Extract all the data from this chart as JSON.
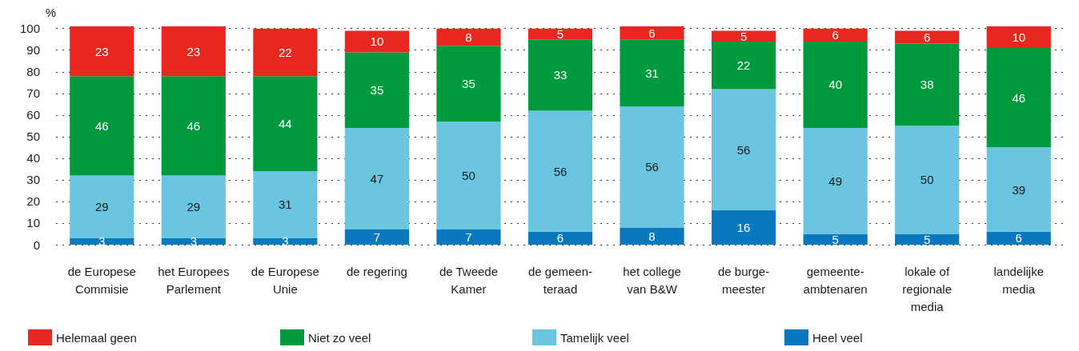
{
  "chart_data": {
    "type": "bar",
    "stacked": true,
    "ylabel": "%",
    "categories": [
      "de Europese\nCommisie",
      "het Europees\nParlement",
      "de Europese\nUnie",
      "de regering",
      "de Tweede\nKamer",
      "de gemeen-\nteraad",
      "het college\nvan B&W",
      "de burge-\nmeester",
      "gemeente-\nambtenaren",
      "lokale of\nregionale\nmedia",
      "landelijke\nmedia"
    ],
    "series": [
      {
        "name": "Heel veel",
        "color": "#0a78bd",
        "values": [
          3,
          3,
          3,
          7,
          7,
          6,
          8,
          16,
          5,
          5,
          6
        ]
      },
      {
        "name": "Tamelijk veel",
        "color": "#6ac6e0",
        "values": [
          29,
          29,
          31,
          47,
          50,
          56,
          56,
          56,
          49,
          50,
          39
        ]
      },
      {
        "name": "Niet zo veel",
        "color": "#009a3e",
        "values": [
          46,
          46,
          44,
          35,
          35,
          33,
          31,
          22,
          40,
          38,
          46
        ]
      },
      {
        "name": "Helemaal geen",
        "color": "#e8281e",
        "values": [
          23,
          23,
          22,
          10,
          8,
          5,
          6,
          5,
          6,
          6,
          10
        ]
      }
    ],
    "ylim": [
      0,
      101
    ],
    "yticks": [
      0,
      10,
      20,
      30,
      40,
      50,
      60,
      70,
      80,
      90,
      100
    ],
    "grid": "y",
    "data_labels": true,
    "legend": "bottom"
  }
}
